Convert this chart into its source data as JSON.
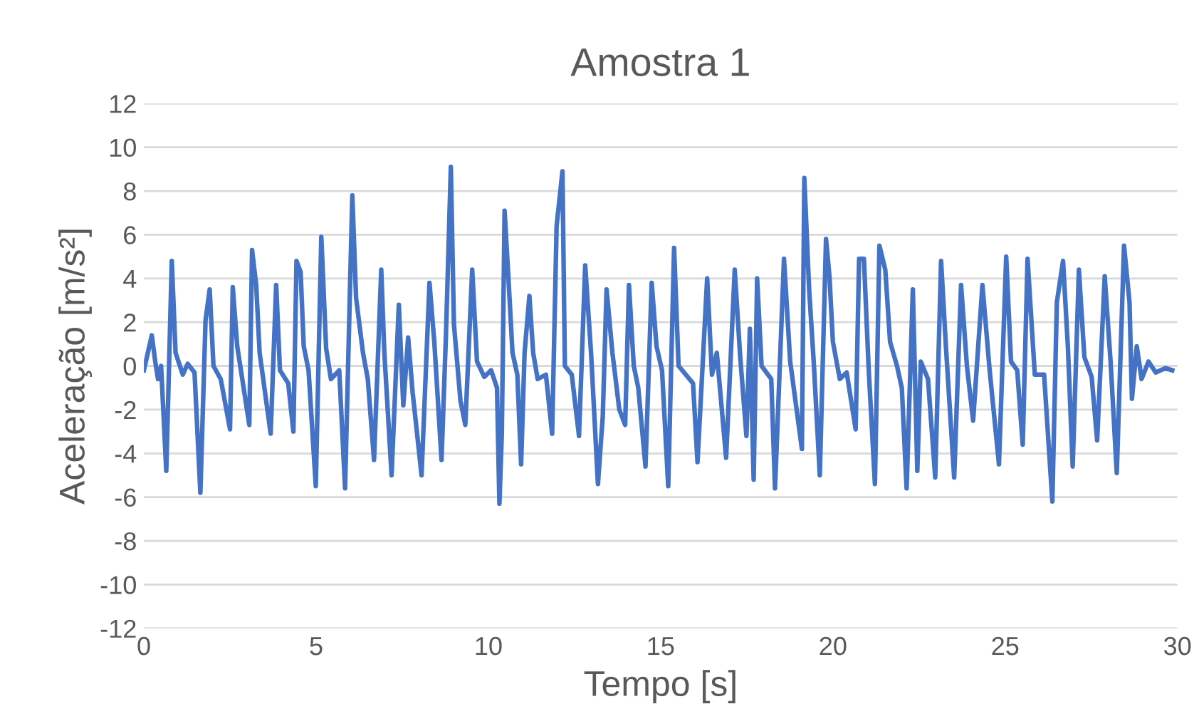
{
  "chart_data": {
    "type": "line",
    "title": "Amostra 1",
    "xlabel": "Tempo [s]",
    "ylabel": "Aceleração [m/s²]",
    "xlim": [
      0,
      30
    ],
    "xticks": [
      0,
      5,
      10,
      15,
      20,
      25,
      30
    ],
    "ylim": [
      -12,
      12
    ],
    "yticks": [
      -12,
      -10,
      -8,
      -6,
      -4,
      -2,
      0,
      2,
      4,
      6,
      8,
      10,
      12
    ],
    "grid": "y",
    "marker": "none",
    "line_style": "solid",
    "series": [
      {
        "color": "#4472c4",
        "x": [
          0.0,
          0.23,
          0.33,
          0.41,
          0.5,
          0.65,
          0.81,
          0.92,
          1.13,
          1.27,
          1.47,
          1.64,
          1.79,
          1.91,
          2.02,
          2.23,
          2.5,
          2.58,
          2.71,
          3.06,
          3.14,
          3.26,
          3.36,
          3.68,
          3.84,
          3.95,
          4.19,
          4.34,
          4.43,
          4.55,
          4.64,
          4.78,
          4.99,
          5.15,
          5.29,
          5.43,
          5.67,
          5.84,
          6.05,
          6.16,
          6.36,
          6.5,
          6.68,
          6.89,
          6.98,
          7.19,
          7.4,
          7.53,
          7.67,
          7.8,
          8.06,
          8.29,
          8.43,
          8.64,
          8.77,
          8.91,
          9.0,
          9.19,
          9.33,
          9.53,
          9.67,
          9.88,
          10.08,
          10.25,
          10.32,
          10.39,
          10.47,
          10.6,
          10.7,
          10.84,
          10.95,
          11.05,
          11.19,
          11.3,
          11.43,
          11.67,
          11.85,
          11.98,
          12.15,
          12.22,
          12.42,
          12.63,
          12.81,
          12.98,
          13.18,
          13.32,
          13.43,
          13.6,
          13.8,
          13.97,
          14.08,
          14.22,
          14.35,
          14.56,
          14.74,
          14.88,
          15.04,
          15.22,
          15.39,
          15.52,
          15.73,
          15.94,
          16.07,
          16.35,
          16.49,
          16.63,
          16.9,
          17.15,
          17.31,
          17.49,
          17.59,
          17.7,
          17.8,
          17.93,
          18.21,
          18.32,
          18.58,
          18.76,
          19.1,
          19.17,
          19.31,
          19.45,
          19.62,
          19.8,
          19.9,
          20.0,
          20.2,
          20.4,
          20.66,
          20.76,
          20.9,
          21.04,
          21.22,
          21.35,
          21.52,
          21.66,
          21.86,
          22.0,
          22.14,
          22.32,
          22.45,
          22.55,
          22.76,
          22.97,
          23.14,
          23.28,
          23.52,
          23.72,
          23.89,
          24.07,
          24.34,
          24.55,
          24.82,
          25.03,
          25.17,
          25.35,
          25.51,
          25.65,
          25.86,
          26.13,
          26.37,
          26.5,
          26.68,
          26.82,
          26.96,
          27.14,
          27.3,
          27.51,
          27.67,
          27.89,
          28.06,
          28.24,
          28.45,
          28.61,
          28.68,
          28.82,
          28.96,
          29.16,
          29.37,
          29.65,
          29.85
        ],
        "values": [
          -0.2,
          1.4,
          0.2,
          -0.6,
          0.0,
          -4.8,
          4.8,
          0.6,
          -0.4,
          0.1,
          -0.3,
          -5.8,
          2.1,
          3.5,
          0.0,
          -0.6,
          -2.9,
          3.6,
          0.9,
          -2.7,
          5.3,
          3.7,
          0.6,
          -3.1,
          3.7,
          -0.2,
          -0.8,
          -3.0,
          4.8,
          4.3,
          0.9,
          -0.2,
          -5.5,
          5.9,
          0.8,
          -0.6,
          -0.2,
          -5.6,
          7.8,
          3.1,
          0.6,
          -0.6,
          -4.3,
          4.4,
          0.6,
          -5.0,
          2.8,
          -1.8,
          1.3,
          -1.2,
          -5.0,
          3.8,
          1.1,
          -4.3,
          1.5,
          9.1,
          1.9,
          -1.6,
          -2.7,
          4.4,
          0.2,
          -0.5,
          -0.2,
          -1.0,
          -6.3,
          -3.1,
          7.1,
          3.5,
          0.6,
          -0.4,
          -4.5,
          0.6,
          3.2,
          0.6,
          -0.6,
          -0.4,
          -3.1,
          6.4,
          8.9,
          0.0,
          -0.4,
          -3.2,
          4.6,
          0.6,
          -5.4,
          -2.3,
          3.5,
          0.6,
          -2.0,
          -2.7,
          3.7,
          0.0,
          -1.0,
          -4.6,
          3.8,
          0.9,
          -0.2,
          -5.5,
          5.4,
          0.0,
          -0.4,
          -0.8,
          -4.4,
          4.0,
          -0.4,
          0.6,
          -4.2,
          4.4,
          0.4,
          -3.2,
          1.7,
          -5.2,
          4.0,
          0.0,
          -0.6,
          -5.6,
          4.9,
          0.2,
          -3.8,
          8.6,
          3.5,
          0.0,
          -5.0,
          5.8,
          4.1,
          1.1,
          -0.6,
          -0.3,
          -2.9,
          4.9,
          4.9,
          -0.2,
          -5.4,
          5.5,
          4.4,
          1.1,
          0.0,
          -1.0,
          -5.6,
          3.5,
          -4.8,
          0.2,
          -0.6,
          -5.1,
          4.8,
          0.9,
          -5.1,
          3.7,
          0.0,
          -2.5,
          3.7,
          -0.2,
          -4.5,
          5.0,
          0.2,
          -0.2,
          -3.6,
          4.9,
          -0.4,
          -0.4,
          -6.2,
          2.9,
          4.8,
          0.9,
          -4.6,
          4.4,
          0.4,
          -0.5,
          -3.4,
          4.1,
          0.2,
          -4.9,
          5.5,
          2.9,
          -1.5,
          0.9,
          -0.6,
          0.2,
          -0.3,
          -0.1,
          -0.2
        ]
      }
    ]
  }
}
